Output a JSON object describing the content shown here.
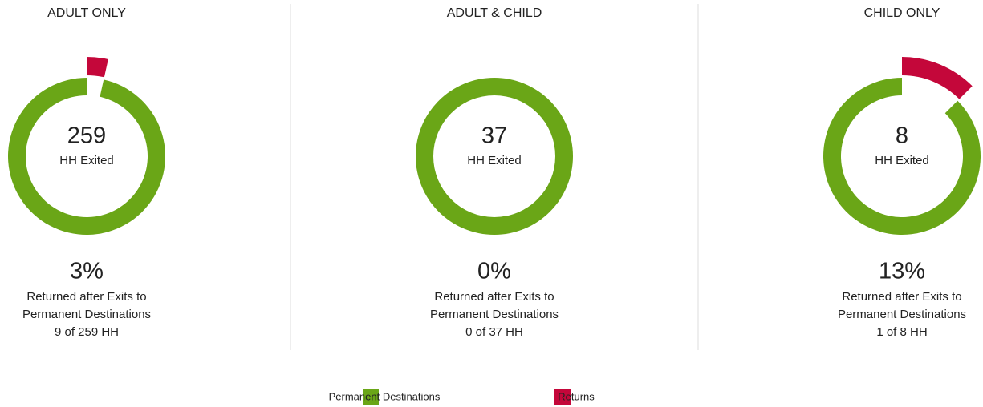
{
  "chart_data": [
    {
      "type": "pie",
      "title": "ADULT ONLY",
      "values": [
        250,
        9
      ],
      "center_value": "259",
      "center_label": "HH Exited",
      "stat": "3%",
      "caption": [
        "Returned after Exits to",
        "Permanent Destinations"
      ],
      "detail": "9 of 259 HH"
    },
    {
      "type": "pie",
      "title": "ADULT & CHILD",
      "values": [
        37,
        0
      ],
      "center_value": "37",
      "center_label": "HH Exited",
      "stat": "0%",
      "caption": [
        "Returned after Exits to",
        "Permanent Destinations"
      ],
      "detail": "0 of 37 HH"
    },
    {
      "type": "pie",
      "title": "CHILD ONLY",
      "values": [
        7,
        1
      ],
      "center_value": "8",
      "center_label": "HH Exited",
      "stat": "13%",
      "caption": [
        "Returned after Exits to",
        "Permanent Destinations"
      ],
      "detail": "1 of 8 HH"
    }
  ],
  "legend": [
    {
      "name": "Permanent Destinations",
      "color": "#6aa617"
    },
    {
      "name": "Returns",
      "color": "#c4073a"
    }
  ]
}
